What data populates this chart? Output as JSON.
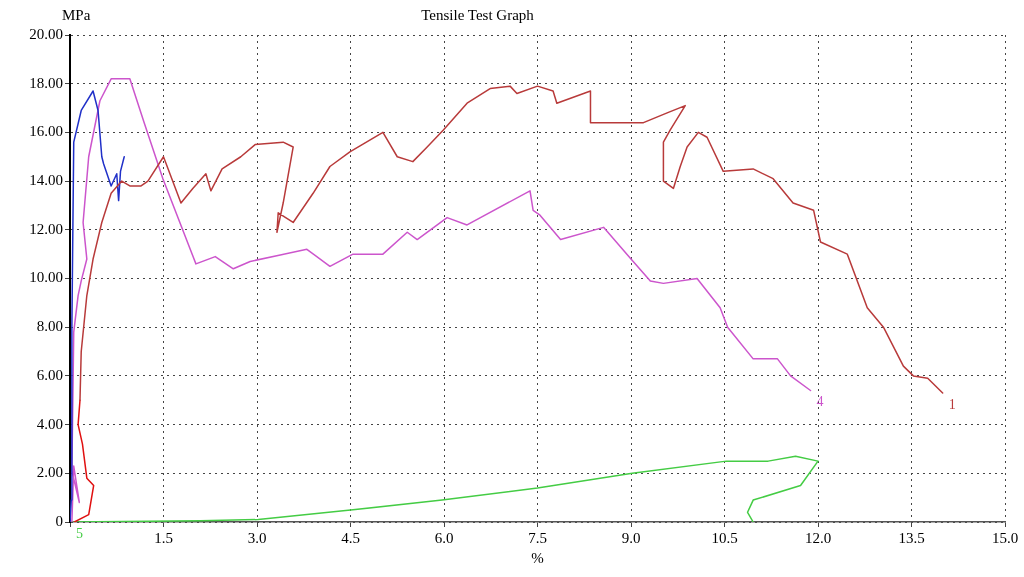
{
  "chart_data": {
    "type": "line",
    "title": "Tensile Test Graph",
    "xlabel": "%",
    "ylabel": "MPa",
    "xlim": [
      0,
      15
    ],
    "ylim": [
      0,
      20
    ],
    "xticks": [
      {
        "value": 0,
        "label": null
      },
      1.5,
      {
        "value": 3,
        "label": "3.0"
      },
      4.5,
      {
        "value": 6,
        "label": "6.0"
      },
      7.5,
      {
        "value": 9,
        "label": "9.0"
      },
      10.5,
      {
        "value": 12,
        "label": "12.0"
      },
      13.5,
      {
        "value": 15,
        "label": "15.0"
      }
    ],
    "yticks": [
      0,
      {
        "value": 2,
        "label": "2.00"
      },
      {
        "value": 4,
        "label": "4.00"
      },
      {
        "value": 6,
        "label": "6.00"
      },
      {
        "value": 8,
        "label": "8.00"
      },
      {
        "value": 10,
        "label": "10.00"
      },
      {
        "value": 12,
        "label": "12.00"
      },
      {
        "value": 14,
        "label": "14.00"
      },
      {
        "value": 16,
        "label": "16.00"
      },
      {
        "value": 18,
        "label": "18.00"
      },
      {
        "value": 20,
        "label": "20.00"
      }
    ],
    "grid": true,
    "legend": false,
    "marker": "none",
    "line_style": "solid",
    "series": [
      {
        "name": "1",
        "color": "#b83a3a",
        "x": [
          0.16,
          0.18,
          0.27,
          0.37,
          0.51,
          0.66,
          0.83,
          0.96,
          1.14,
          1.25,
          1.5,
          1.78,
          1.97,
          2.18,
          2.26,
          2.44,
          2.74,
          2.97,
          3.42,
          3.58,
          3.42,
          3.32,
          3.34,
          3.58,
          3.9,
          4.17,
          4.49,
          5.02,
          5.25,
          5.5,
          5.73,
          5.99,
          6.37,
          6.74,
          7.06,
          7.17,
          7.5,
          7.75,
          7.81,
          8.35,
          8.35,
          9.2,
          9.58,
          9.87,
          9.63,
          9.52,
          9.52,
          9.68,
          9.79,
          9.9,
          10.08,
          10.22,
          10.48,
          10.96,
          11.28,
          11.6,
          11.93,
          12.04,
          12.47,
          12.79,
          13.05,
          13.37,
          13.53,
          13.76,
          14.0
        ],
        "values": [
          5.0,
          7.0,
          9.3,
          10.8,
          12.3,
          13.5,
          14.0,
          13.8,
          13.8,
          14.0,
          15.0,
          13.1,
          13.7,
          14.3,
          13.6,
          14.5,
          15.0,
          15.5,
          15.6,
          15.4,
          13.1,
          11.9,
          12.7,
          12.3,
          13.5,
          14.6,
          15.2,
          16.0,
          15.0,
          14.8,
          15.4,
          16.1,
          17.2,
          17.8,
          17.9,
          17.6,
          17.9,
          17.7,
          17.2,
          17.7,
          16.4,
          16.4,
          16.8,
          17.1,
          16.1,
          15.6,
          14.0,
          13.7,
          14.6,
          15.4,
          16.0,
          15.8,
          14.4,
          14.5,
          14.1,
          13.1,
          12.8,
          11.5,
          11.0,
          8.8,
          8.0,
          6.4,
          6.0,
          5.9,
          5.3
        ]
      },
      {
        "color": "#e01010",
        "x": [
          0.07,
          0.3,
          0.38,
          0.27,
          0.2,
          0.13,
          0.16
        ],
        "values": [
          0,
          0.3,
          1.5,
          1.8,
          3.2,
          4.0,
          5.0
        ]
      },
      {
        "color": "#2030c8",
        "x": [
          0,
          0.02,
          0.03,
          0.06,
          0.18,
          0.37,
          0.45,
          0.51,
          0.54,
          0.66,
          0.75,
          0.78,
          0.81,
          0.87
        ],
        "values": [
          0,
          0.9,
          8.0,
          15.6,
          16.9,
          17.7,
          16.9,
          15.0,
          14.7,
          13.8,
          14.3,
          13.2,
          14.4,
          15.0
        ]
      },
      {
        "name": "4",
        "color": "#cc55cc",
        "x": [
          0.03,
          0.06,
          0.15,
          0.03,
          0.06,
          0.13,
          0.18,
          0.27,
          0.21,
          0.3,
          0.48,
          0.66,
          0.96,
          1.19,
          1.49,
          2.02,
          2.33,
          2.62,
          2.89,
          3.8,
          4.17,
          4.54,
          5.02,
          5.41,
          5.57,
          6.05,
          6.37,
          7.38,
          7.43,
          7.54,
          7.87,
          8.56,
          9.0,
          9.31,
          9.52,
          10.06,
          10.43,
          10.55,
          10.96,
          11.35,
          11.56,
          11.88
        ],
        "values": [
          0,
          2.3,
          0.8,
          2.1,
          7.8,
          9.3,
          9.9,
          10.8,
          12.3,
          15.0,
          17.3,
          18.2,
          18.2,
          16.4,
          14.1,
          10.6,
          10.9,
          10.4,
          10.7,
          11.2,
          10.5,
          11.0,
          11.0,
          11.9,
          11.6,
          12.5,
          12.2,
          13.6,
          12.8,
          12.6,
          11.6,
          12.1,
          10.8,
          9.9,
          9.8,
          10.0,
          8.8,
          8.0,
          6.7,
          6.7,
          6.0,
          5.4
        ]
      },
      {
        "name": "5",
        "color": "#44cc44",
        "x": [
          10.96,
          10.87,
          10.96,
          11.72,
          12.0,
          11.64,
          11.2,
          10.53,
          9.02,
          7.5,
          5.97,
          4.54,
          3.02,
          2.09,
          0
        ],
        "values": [
          0,
          0.4,
          0.9,
          1.5,
          2.5,
          2.7,
          2.5,
          2.5,
          2.0,
          1.4,
          0.9,
          0.5,
          0.1,
          0.05,
          0
        ]
      }
    ]
  }
}
